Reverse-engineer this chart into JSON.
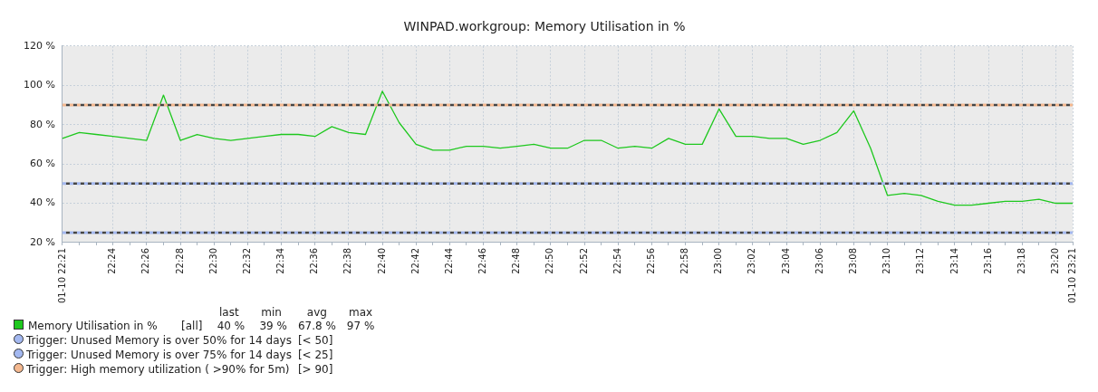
{
  "chart_data": {
    "type": "line",
    "title": "WINPAD.workgroup: Memory Utilisation in %",
    "categories": [
      "01-10 22:21",
      null,
      null,
      "22:24",
      null,
      "22:26",
      null,
      "22:28",
      null,
      "22:30",
      null,
      "22:32",
      null,
      "22:34",
      null,
      "22:36",
      null,
      "22:38",
      null,
      "22:40",
      null,
      "22:42",
      null,
      "22:44",
      null,
      "22:46",
      null,
      "22:48",
      null,
      "22:50",
      null,
      "22:52",
      null,
      "22:54",
      null,
      "22:56",
      null,
      "22:58",
      null,
      "23:00",
      null,
      "23:02",
      null,
      "23:04",
      null,
      "23:06",
      null,
      "23:08",
      null,
      "23:10",
      null,
      "23:12",
      null,
      "23:14",
      null,
      "23:16",
      null,
      "23:18",
      null,
      "23:20",
      "01-10 23:21"
    ],
    "series": [
      {
        "name": "Memory Utilisation in %",
        "color": "#1ec81e",
        "values": [
          73,
          76,
          75,
          74,
          73,
          72,
          95,
          72,
          75,
          73,
          72,
          73,
          74,
          75,
          75,
          74,
          79,
          76,
          75,
          97,
          81,
          70,
          67,
          67,
          69,
          69,
          68,
          69,
          70,
          68,
          68,
          72,
          72,
          68,
          69,
          68,
          73,
          70,
          70,
          88,
          74,
          74,
          73,
          73,
          70,
          72,
          76,
          87,
          68,
          44,
          45,
          44,
          41,
          39,
          39,
          40,
          41,
          41,
          42,
          40,
          40
        ]
      }
    ],
    "ylim": [
      20,
      120
    ],
    "yticks": [
      {
        "value": 20,
        "label": "20 %"
      },
      {
        "value": 40,
        "label": "40 %"
      },
      {
        "value": 60,
        "label": "60 %"
      },
      {
        "value": 80,
        "label": "80 %"
      },
      {
        "value": 100,
        "label": "100 %"
      },
      {
        "value": 120,
        "label": "120 %"
      }
    ],
    "ref_lines": [
      {
        "axis": "y",
        "value": 50,
        "label": "Trigger: Unused Memory is over 50% for 14 days",
        "color": "#a3b8f0",
        "line_style": "dashed"
      },
      {
        "axis": "y",
        "value": 25,
        "label": "Trigger: Unused Memory is over 75% for 14 days",
        "color": "#a3b8f0",
        "line_style": "dashed"
      },
      {
        "axis": "y",
        "value": 90,
        "label": "Trigger: High memory utilization ( >90% for 5m)",
        "color": "#f4b88f",
        "line_style": "dashed"
      }
    ],
    "annotations": [
      "last",
      "min",
      "avg",
      "max",
      "[all]",
      "40 %",
      "39 %",
      "67.8 %",
      "97 %",
      "[< 50]",
      "[< 25]",
      "[> 90]"
    ],
    "grid": true,
    "legend": "bottom",
    "marker": "none",
    "line_style": "solid"
  }
}
